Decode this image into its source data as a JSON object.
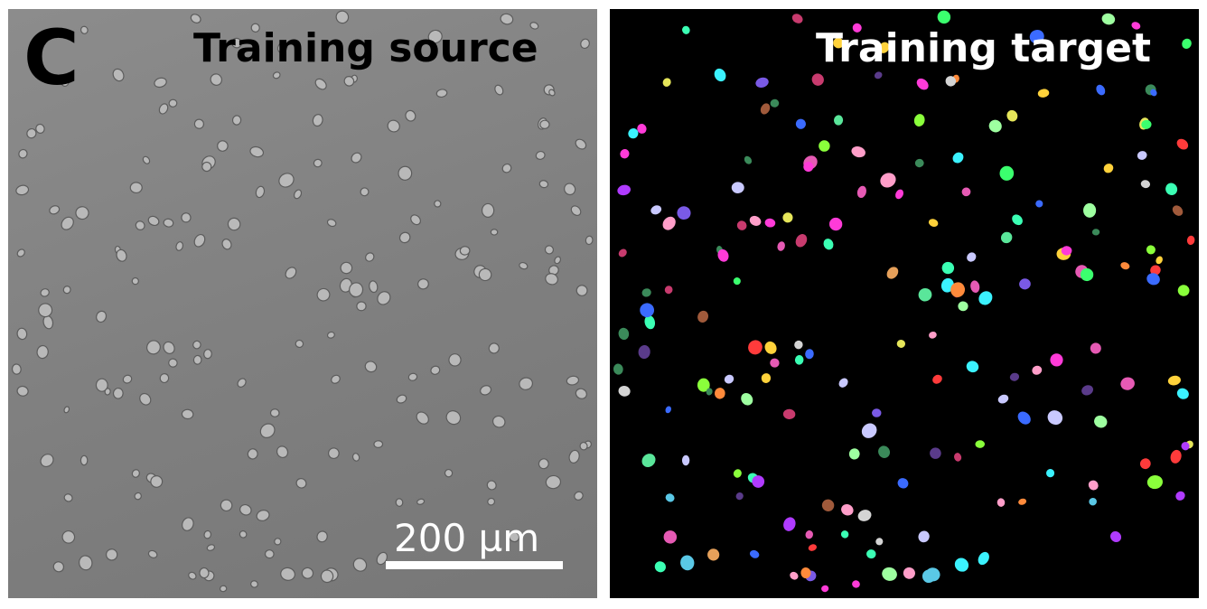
{
  "figure": {
    "panel_letter": "C",
    "left_panel": {
      "title": "Training source",
      "scale_bar_label": "200 µm"
    },
    "right_panel": {
      "title": "Training target"
    }
  },
  "colors": {
    "background_source": "#808080",
    "background_target": "#000000",
    "title_source": "#000000",
    "title_target": "#ffffff",
    "scale_bar": "#ffffff"
  }
}
